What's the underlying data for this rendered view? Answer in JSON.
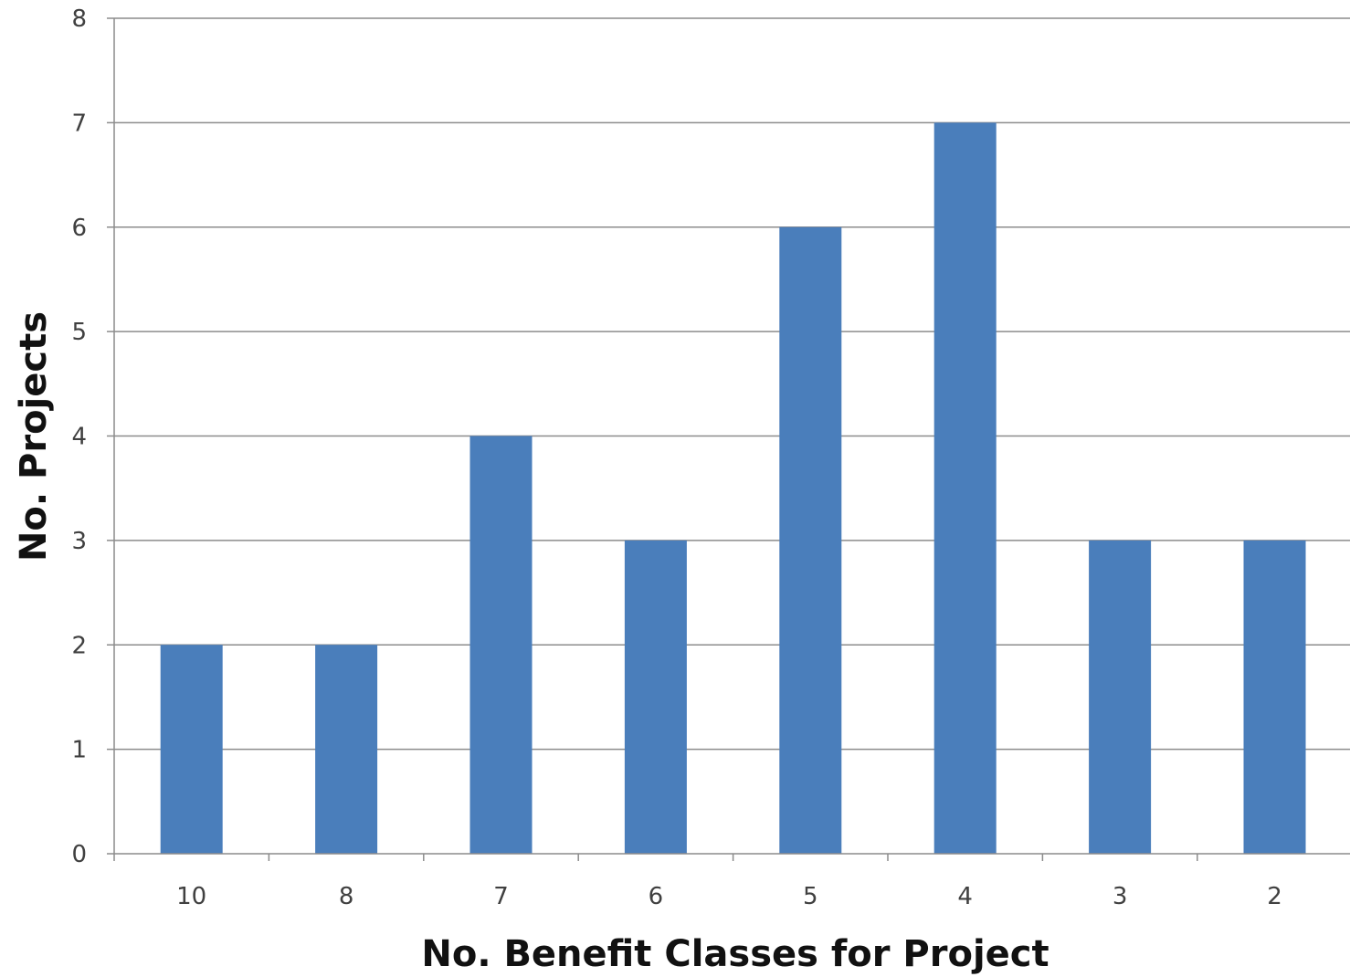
{
  "chart_data": {
    "type": "bar",
    "title": "",
    "xlabel": "No. Benefit Classes for Project",
    "ylabel": "No. Projects",
    "categories": [
      "10",
      "8",
      "7",
      "6",
      "5",
      "4",
      "3",
      "2"
    ],
    "values": [
      2,
      2,
      4,
      3,
      6,
      7,
      3,
      3
    ],
    "ylim": [
      0,
      8
    ],
    "yticks": [
      "0",
      "1",
      "2",
      "3",
      "4",
      "5",
      "6",
      "7",
      "8"
    ],
    "grid": true,
    "legend": "none",
    "bar_color": "#4a7ebb",
    "grid_color": "#8c8c8c",
    "axis_color": "#8c8c8c"
  }
}
